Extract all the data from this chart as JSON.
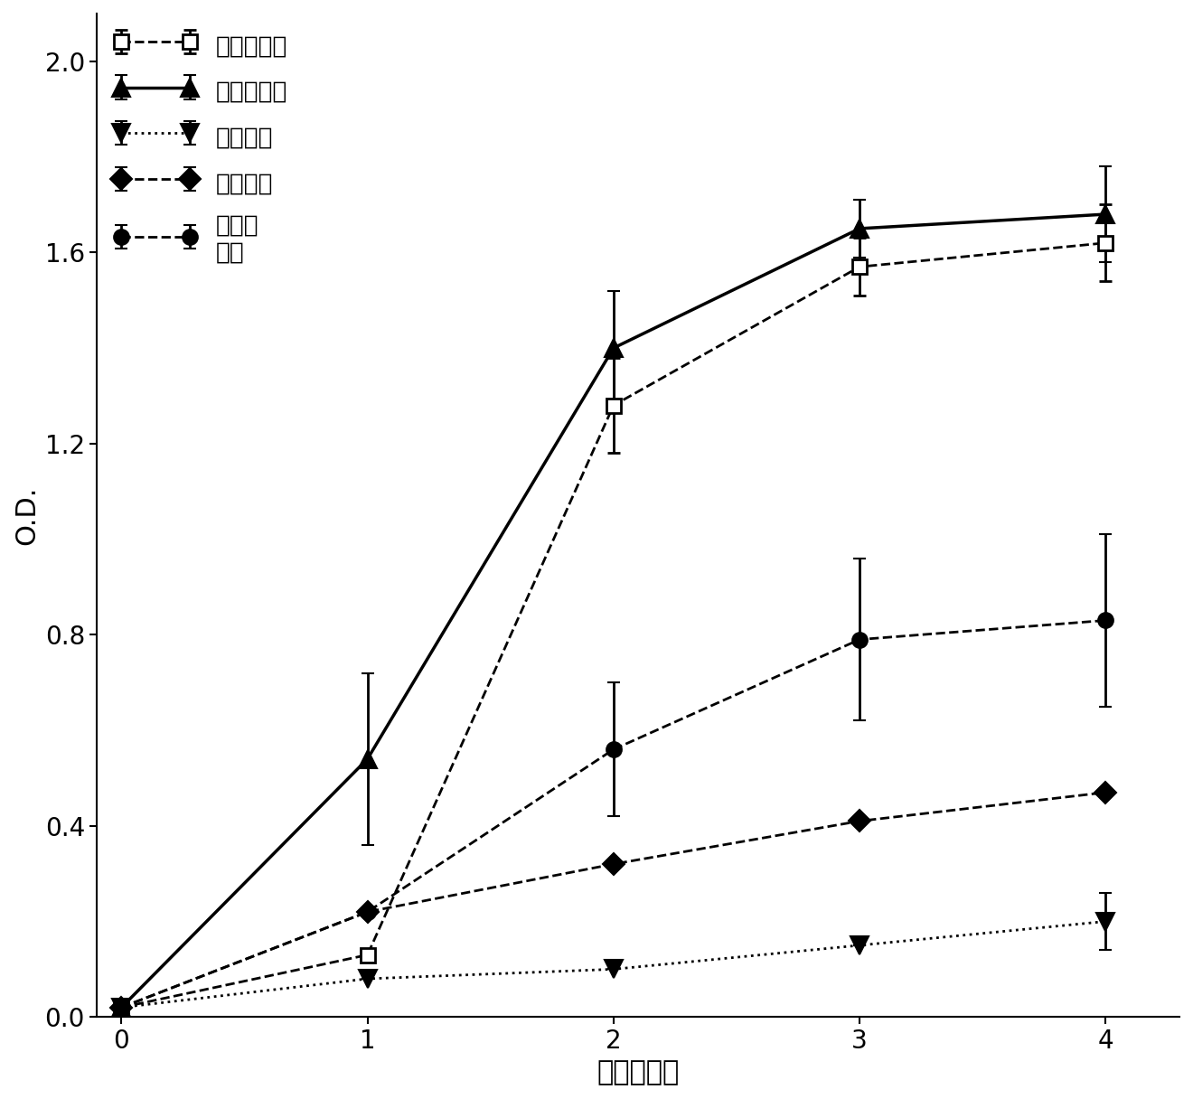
{
  "x": [
    0,
    1,
    2,
    3,
    4
  ],
  "series": [
    {
      "label": "皮肤划痕法",
      "y": [
        0.02,
        0.13,
        1.28,
        1.57,
        1.62
      ],
      "yerr": [
        0.0,
        0.0,
        0.1,
        0.06,
        0.08
      ],
      "color": "#000000",
      "linestyle": "--",
      "linewidth": 2.0,
      "marker": "s",
      "markersize": 12,
      "markerfacecolor": "white",
      "markeredgecolor": "#000000",
      "markeredgewidth": 2.0
    },
    {
      "label": "腹膜内注射",
      "y": [
        0.02,
        0.54,
        1.4,
        1.65,
        1.68
      ],
      "yerr": [
        0.0,
        0.18,
        0.12,
        0.06,
        0.1
      ],
      "color": "#000000",
      "linestyle": "-",
      "linewidth": 2.5,
      "marker": "^",
      "markersize": 14,
      "markerfacecolor": "#000000",
      "markeredgecolor": "#000000",
      "markeredgewidth": 1.5
    },
    {
      "label": "皮下注射",
      "y": [
        0.02,
        0.08,
        0.1,
        0.15,
        0.2
      ],
      "yerr": [
        0.0,
        0.0,
        0.0,
        0.0,
        0.06
      ],
      "color": "#000000",
      "linestyle": ":",
      "linewidth": 2.0,
      "marker": "v",
      "markersize": 14,
      "markerfacecolor": "#000000",
      "markeredgecolor": "#000000",
      "markeredgewidth": 1.5
    },
    {
      "label": "皮内注射",
      "y": [
        0.02,
        0.22,
        0.32,
        0.41,
        0.47
      ],
      "yerr": [
        0.0,
        0.0,
        0.0,
        0.0,
        0.0
      ],
      "color": "#000000",
      "linestyle": "--",
      "linewidth": 2.0,
      "marker": "D",
      "markersize": 12,
      "markerfacecolor": "#000000",
      "markeredgecolor": "#000000",
      "markeredgewidth": 1.5
    },
    {
      "label": "肌肉内\n注射",
      "y": [
        0.02,
        0.22,
        0.56,
        0.79,
        0.83
      ],
      "yerr": [
        0.0,
        0.0,
        0.14,
        0.17,
        0.18
      ],
      "color": "#000000",
      "linestyle": "--",
      "linewidth": 2.0,
      "marker": "o",
      "markersize": 12,
      "markerfacecolor": "#000000",
      "markeredgecolor": "#000000",
      "markeredgewidth": 1.5
    }
  ],
  "xlabel": "免疫后周数",
  "ylabel": "O.D.",
  "xlim": [
    -0.1,
    4.3
  ],
  "ylim": [
    0.0,
    2.1
  ],
  "yticks": [
    0.0,
    0.4,
    0.8,
    1.2,
    1.6,
    2.0
  ],
  "xticks": [
    0,
    1,
    2,
    3,
    4
  ],
  "xlabel_fontsize": 22,
  "ylabel_fontsize": 22,
  "tick_fontsize": 20,
  "legend_fontsize": 19,
  "background_color": "#ffffff",
  "figsize": [
    13.2,
    12.16
  ],
  "dpi": 100
}
